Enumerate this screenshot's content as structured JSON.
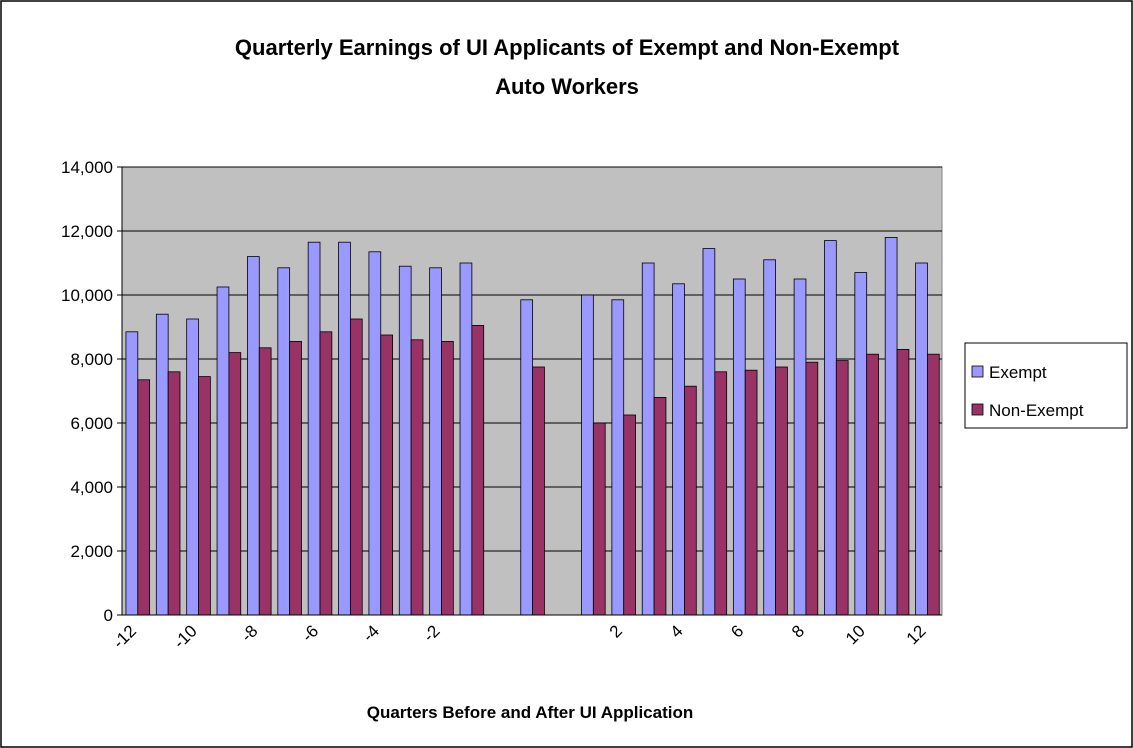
{
  "chart_data": {
    "type": "bar",
    "title": "Quarterly Earnings of UI Applicants of Exempt and Non-Exempt Auto Workers",
    "x_label": "Quarters Before and After UI Application",
    "categories": [
      "-12",
      null,
      "-10",
      null,
      "-8",
      null,
      "-6",
      null,
      "-4",
      null,
      "-2",
      null,
      null,
      null,
      null,
      null,
      "2",
      null,
      "4",
      null,
      "6",
      null,
      "8",
      null,
      "10",
      null,
      "12"
    ],
    "series": [
      {
        "name": "Exempt",
        "color": "#9999ff",
        "values": [
          8850,
          9400,
          9250,
          10250,
          11200,
          10850,
          11650,
          11650,
          11350,
          10900,
          10850,
          11000,
          null,
          9850,
          null,
          10000,
          9850,
          11000,
          10350,
          11450,
          10500,
          11100,
          10500,
          11700,
          10700,
          11800,
          11000
        ]
      },
      {
        "name": "Non-Exempt",
        "color": "#993366",
        "values": [
          7350,
          7600,
          7450,
          8200,
          8350,
          8550,
          8850,
          9250,
          8750,
          8600,
          8550,
          9050,
          null,
          7750,
          null,
          6000,
          6250,
          6800,
          7150,
          7600,
          7650,
          7750,
          7900,
          7950,
          8150,
          8300,
          8150
        ]
      }
    ],
    "ylim": [
      0,
      14000
    ],
    "yticks": [
      0,
      {
        "value": 2000,
        "label": "2,000"
      },
      {
        "value": 4000,
        "label": "4,000"
      },
      {
        "value": 6000,
        "label": "6,000"
      },
      {
        "value": 8000,
        "label": "8,000"
      },
      {
        "value": 10000,
        "label": "10,000"
      },
      {
        "value": 12000,
        "label": "12,000"
      },
      {
        "value": 14000,
        "label": "14,000"
      }
    ],
    "grid": true,
    "plot_background": "#c0c0c0",
    "legend": "right"
  }
}
